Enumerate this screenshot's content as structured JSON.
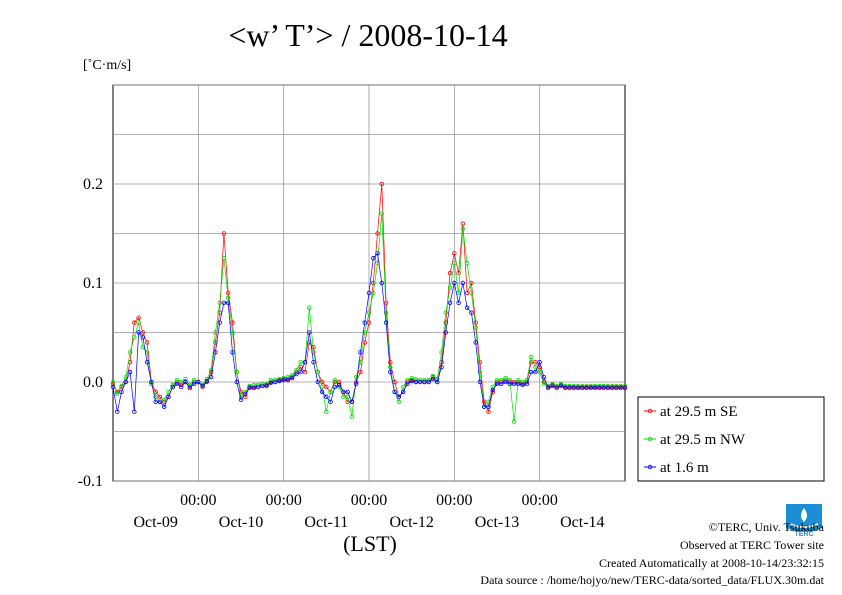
{
  "chart_data": {
    "type": "line",
    "title": "<w’ T’> / 2008-10-14",
    "unit_label": "[˚C·m/s]",
    "xlabel": "(LST)",
    "ylim": [
      -0.1,
      0.3
    ],
    "yticks": [
      -0.1,
      0.0,
      0.1,
      0.2
    ],
    "ytick_labels": [
      "-0.1",
      "0.0",
      "0.1",
      "0.2"
    ],
    "xlim": [
      -1.0,
      5.0
    ],
    "xticks": [
      0,
      1,
      2,
      3,
      4
    ],
    "xtick_labels_top": [
      "00:00",
      "00:00",
      "00:00",
      "00:00",
      "00:00"
    ],
    "xtick_labels_bottom": [
      "Oct-09",
      "Oct-10",
      "Oct-11",
      "Oct-12",
      "Oct-13",
      "Oct-14"
    ],
    "xtick_bottom_positions": [
      -0.5,
      0.5,
      1.5,
      2.5,
      3.5,
      4.5
    ],
    "grid": true,
    "legend_position": "right",
    "series": [
      {
        "name": "at 29.5 m SE",
        "color": "#ff0000"
      },
      {
        "name": "at 29.5 m NW",
        "color": "#00dd00"
      },
      {
        "name": "at 1.6 m",
        "color": "#0000ff"
      }
    ],
    "x_days": [
      -1.0,
      -0.95,
      -0.9,
      -0.85,
      -0.8,
      -0.75,
      -0.7,
      -0.65,
      -0.6,
      -0.55,
      -0.5,
      -0.45,
      -0.4,
      -0.35,
      -0.3,
      -0.25,
      -0.2,
      -0.15,
      -0.1,
      -0.05,
      0.0,
      0.05,
      0.1,
      0.15,
      0.2,
      0.25,
      0.3,
      0.35,
      0.4,
      0.45,
      0.5,
      0.55,
      0.6,
      0.65,
      0.7,
      0.75,
      0.8,
      0.85,
      0.9,
      0.95,
      1.0,
      1.05,
      1.1,
      1.15,
      1.2,
      1.25,
      1.3,
      1.35,
      1.4,
      1.45,
      1.5,
      1.55,
      1.6,
      1.65,
      1.7,
      1.75,
      1.8,
      1.85,
      1.9,
      1.95,
      2.0,
      2.05,
      2.1,
      2.15,
      2.2,
      2.25,
      2.3,
      2.35,
      2.4,
      2.45,
      2.5,
      2.55,
      2.6,
      2.65,
      2.7,
      2.75,
      2.8,
      2.85,
      2.9,
      2.95,
      3.0,
      3.05,
      3.1,
      3.15,
      3.2,
      3.25,
      3.3,
      3.35,
      3.4,
      3.45,
      3.5,
      3.55,
      3.6,
      3.65,
      3.7,
      3.75,
      3.8,
      3.85,
      3.9,
      3.95,
      4.0,
      4.05,
      4.1,
      4.15,
      4.2,
      4.25,
      4.3,
      4.35,
      4.4,
      4.45,
      4.5,
      4.55,
      4.6,
      4.65,
      4.7,
      4.75,
      4.8,
      4.85,
      4.9,
      4.95,
      5.0
    ],
    "values": {
      "at 29.5 m SE": [
        -0.002,
        -0.01,
        -0.005,
        0.0,
        0.02,
        0.06,
        0.065,
        0.05,
        0.04,
        0.0,
        -0.01,
        -0.015,
        -0.02,
        -0.015,
        -0.005,
        0.0,
        -0.003,
        0.0,
        -0.005,
        0.0,
        0.0,
        -0.005,
        0.0,
        0.01,
        0.04,
        0.07,
        0.15,
        0.09,
        0.06,
        0.01,
        -0.01,
        -0.015,
        -0.005,
        -0.005,
        -0.005,
        -0.004,
        -0.003,
        0.0,
        0.0,
        0.002,
        0.003,
        0.003,
        0.005,
        0.01,
        0.015,
        0.01,
        0.04,
        0.035,
        0.01,
        0.0,
        -0.005,
        -0.01,
        0.0,
        0.0,
        -0.01,
        -0.02,
        -0.02,
        0.0,
        0.01,
        0.04,
        0.06,
        0.1,
        0.15,
        0.2,
        0.08,
        0.02,
        0.0,
        -0.015,
        -0.01,
        0.0,
        0.002,
        0.0,
        0.0,
        0.0,
        0.0,
        0.005,
        0.0,
        0.02,
        0.06,
        0.11,
        0.13,
        0.11,
        0.16,
        0.09,
        0.1,
        0.06,
        0.02,
        -0.02,
        -0.03,
        -0.01,
        0.0,
        0.0,
        0.002,
        0.0,
        0.0,
        0.0,
        -0.002,
        0.0,
        0.02,
        0.02,
        0.015,
        0.0,
        -0.005,
        -0.003,
        -0.005,
        -0.003,
        -0.005,
        -0.005,
        -0.005,
        -0.005,
        -0.005,
        -0.005,
        -0.005,
        -0.005,
        -0.005,
        -0.005,
        -0.005,
        -0.005,
        -0.005,
        -0.005,
        -0.005
      ],
      "at 29.5 m NW": [
        0.0,
        -0.012,
        -0.004,
        0.005,
        0.03,
        0.045,
        0.06,
        0.035,
        0.03,
        -0.002,
        -0.015,
        -0.02,
        -0.018,
        -0.01,
        -0.003,
        0.002,
        0.0,
        0.003,
        -0.003,
        0.002,
        0.0,
        -0.003,
        0.003,
        0.012,
        0.05,
        0.08,
        0.125,
        0.085,
        0.05,
        0.01,
        -0.015,
        -0.01,
        -0.004,
        -0.003,
        -0.003,
        -0.002,
        -0.002,
        0.002,
        0.002,
        0.003,
        0.004,
        0.005,
        0.007,
        0.012,
        0.02,
        0.02,
        0.075,
        0.03,
        0.01,
        -0.005,
        -0.03,
        -0.01,
        0.002,
        -0.005,
        -0.015,
        -0.015,
        -0.035,
        0.005,
        0.02,
        0.05,
        0.07,
        0.09,
        0.12,
        0.17,
        0.07,
        0.015,
        -0.01,
        -0.02,
        -0.005,
        0.002,
        0.004,
        0.003,
        0.002,
        0.002,
        0.002,
        0.006,
        0.003,
        0.03,
        0.07,
        0.095,
        0.12,
        0.09,
        0.155,
        0.12,
        0.09,
        0.055,
        0.01,
        -0.025,
        -0.02,
        -0.005,
        0.002,
        0.002,
        0.004,
        0.002,
        -0.04,
        0.002,
        0.0,
        0.002,
        0.025,
        0.015,
        0.01,
        -0.002,
        -0.004,
        -0.002,
        -0.004,
        -0.002,
        -0.004,
        -0.004,
        -0.004,
        -0.004,
        -0.004,
        -0.004,
        -0.004,
        -0.004,
        -0.004,
        -0.004,
        -0.004,
        -0.004,
        -0.004,
        -0.004,
        -0.004
      ],
      "at 1.6 m": [
        -0.005,
        -0.03,
        -0.01,
        0.0,
        0.01,
        -0.03,
        0.05,
        0.045,
        0.02,
        0.0,
        -0.02,
        -0.02,
        -0.025,
        -0.015,
        -0.005,
        -0.002,
        -0.005,
        0.0,
        -0.006,
        -0.002,
        0.0,
        -0.004,
        0.001,
        0.005,
        0.03,
        0.06,
        0.08,
        0.08,
        0.03,
        0.0,
        -0.018,
        -0.012,
        -0.006,
        -0.006,
        -0.005,
        -0.004,
        -0.004,
        -0.001,
        0.0,
        0.001,
        0.002,
        0.002,
        0.004,
        0.008,
        0.01,
        0.02,
        0.05,
        0.02,
        0.0,
        -0.01,
        -0.015,
        -0.02,
        -0.005,
        -0.003,
        -0.01,
        -0.01,
        -0.02,
        -0.002,
        0.03,
        0.06,
        0.09,
        0.125,
        0.13,
        0.1,
        0.06,
        0.01,
        -0.01,
        -0.015,
        -0.01,
        -0.002,
        0.001,
        0.0,
        0.0,
        0.0,
        0.0,
        0.003,
        0.0,
        0.015,
        0.05,
        0.08,
        0.1,
        0.08,
        0.1,
        0.075,
        0.07,
        0.04,
        0.0,
        -0.025,
        -0.025,
        -0.008,
        -0.002,
        -0.002,
        0.0,
        -0.002,
        -0.002,
        -0.002,
        -0.003,
        -0.002,
        0.01,
        0.01,
        0.02,
        0.005,
        -0.006,
        -0.004,
        -0.006,
        -0.004,
        -0.006,
        -0.006,
        -0.006,
        -0.006,
        -0.006,
        -0.006,
        -0.006,
        -0.006,
        -0.006,
        -0.006,
        -0.006,
        -0.006,
        -0.006,
        -0.006,
        -0.006
      ]
    }
  },
  "footer": {
    "copyright": "©TERC, Univ. Tsukuba",
    "observed": "Observed at TERC Tower site",
    "created": "Created Automatically at 2008-10-14/23:32:15",
    "source": "Data source : /home/hojyo/new/TERC-data/sorted_data/FLUX.30m.dat",
    "logo_text": "TERC"
  }
}
